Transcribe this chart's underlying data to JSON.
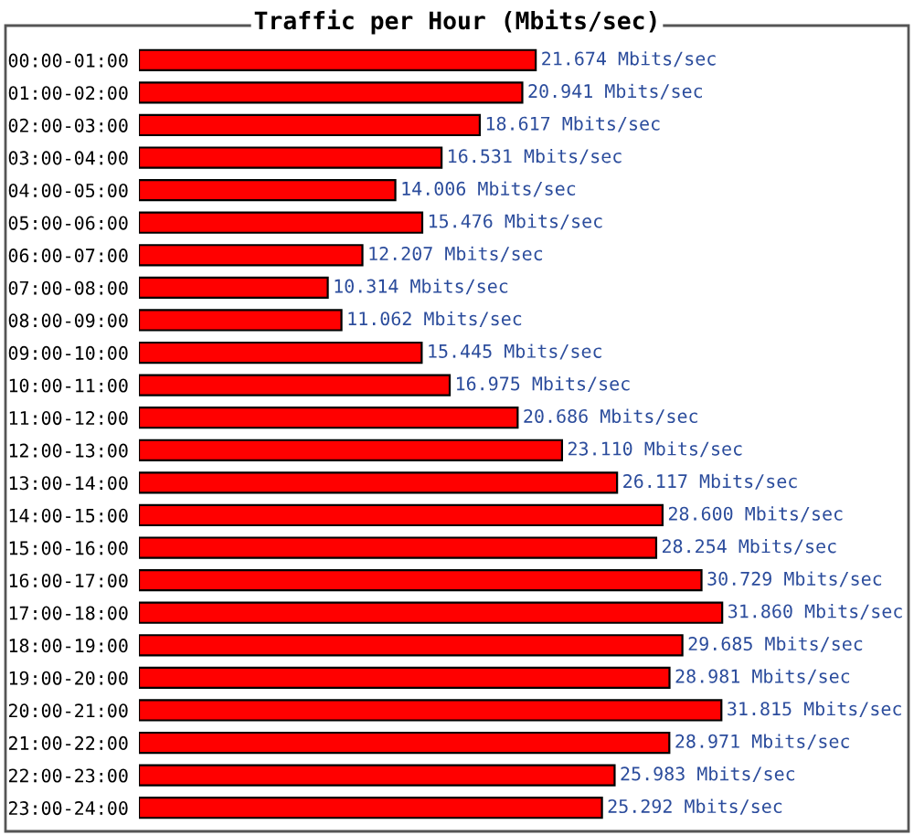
{
  "chart_data": {
    "type": "bar",
    "orientation": "horizontal",
    "title": "Traffic per Hour (Mbits/sec)",
    "categories": [
      "00:00-01:00",
      "01:00-02:00",
      "02:00-03:00",
      "03:00-04:00",
      "04:00-05:00",
      "05:00-06:00",
      "06:00-07:00",
      "07:00-08:00",
      "08:00-09:00",
      "09:00-10:00",
      "10:00-11:00",
      "11:00-12:00",
      "12:00-13:00",
      "13:00-14:00",
      "14:00-15:00",
      "15:00-16:00",
      "16:00-17:00",
      "17:00-18:00",
      "18:00-19:00",
      "19:00-20:00",
      "20:00-21:00",
      "21:00-22:00",
      "22:00-23:00",
      "23:00-24:00"
    ],
    "values": [
      21.674,
      20.941,
      18.617,
      16.531,
      14.006,
      15.476,
      12.207,
      10.314,
      11.062,
      15.445,
      16.975,
      20.686,
      23.11,
      26.117,
      28.6,
      28.254,
      30.729,
      31.86,
      29.685,
      28.981,
      31.815,
      28.971,
      25.983,
      25.292
    ],
    "value_labels": [
      "21.674 Mbits/sec",
      "20.941 Mbits/sec",
      "18.617 Mbits/sec",
      "16.531 Mbits/sec",
      "14.006 Mbits/sec",
      "15.476 Mbits/sec",
      "12.207 Mbits/sec",
      "10.314 Mbits/sec",
      "11.062 Mbits/sec",
      "15.445 Mbits/sec",
      "16.975 Mbits/sec",
      "20.686 Mbits/sec",
      "23.110 Mbits/sec",
      "26.117 Mbits/sec",
      "28.600 Mbits/sec",
      "28.254 Mbits/sec",
      "30.729 Mbits/sec",
      "31.860 Mbits/sec",
      "29.685 Mbits/sec",
      "28.981 Mbits/sec",
      "31.815 Mbits/sec",
      "28.971 Mbits/sec",
      "25.983 Mbits/sec",
      "25.292 Mbits/sec"
    ],
    "color": "#ff0000",
    "grid": false,
    "legend": false
  }
}
